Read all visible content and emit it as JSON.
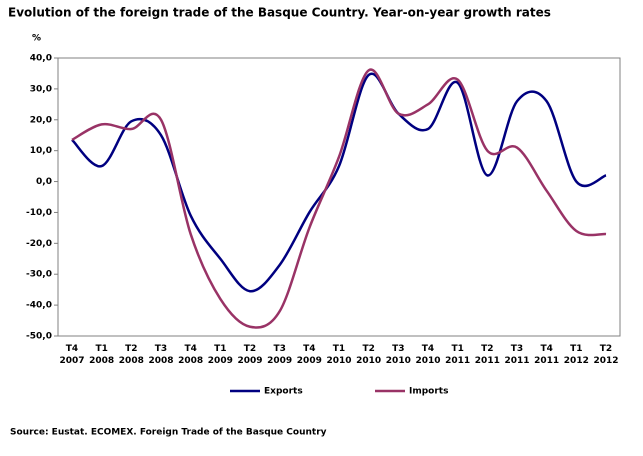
{
  "chart_data": {
    "type": "line",
    "title": "Evolution of the foreign trade of the Basque Country. Year-on-year growth rates",
    "y_label": "%",
    "source": "Source: Eustat. ECOMEX. Foreign Trade of the Basque Country",
    "categories": [
      "T4 2007",
      "T1 2008",
      "T2 2008",
      "T3 2008",
      "T4 2008",
      "T1 2009",
      "T2 2009",
      "T3 2009",
      "T4 2009",
      "T1 2010",
      "T2 2010",
      "T3 2010",
      "T4 2010",
      "T1 2011",
      "T2 2011",
      "T3 2011",
      "T4 2011",
      "T1 2012",
      "T2 2012"
    ],
    "series": [
      {
        "name": "Exports",
        "color": "#000080",
        "values": [
          13.5,
          5,
          19.5,
          15,
          -11,
          -25,
          -35.5,
          -27,
          -10,
          5,
          34.5,
          22,
          17,
          32,
          2,
          26,
          26,
          0,
          2
        ]
      },
      {
        "name": "Imports",
        "color": "#993366",
        "values": [
          13.5,
          18.5,
          17,
          20,
          -17,
          -38,
          -47,
          -42,
          -15,
          8,
          36,
          22,
          25,
          33,
          10,
          11,
          -3,
          -16,
          -17
        ]
      }
    ],
    "ylim": [
      -50,
      40
    ],
    "yticks": [
      {
        "value": -50,
        "label": "-50,0"
      },
      {
        "value": -40,
        "label": "-40,0"
      },
      {
        "value": -30,
        "label": "-30,0"
      },
      {
        "value": -20,
        "label": "-20,0"
      },
      {
        "value": -10,
        "label": "-10,0"
      },
      {
        "value": 0,
        "label": "0,0"
      },
      {
        "value": 10,
        "label": "10,0"
      },
      {
        "value": 20,
        "label": "20,0"
      },
      {
        "value": 30,
        "label": "30,0"
      },
      {
        "value": 40,
        "label": "40,0"
      }
    ],
    "legend": "bottom"
  }
}
